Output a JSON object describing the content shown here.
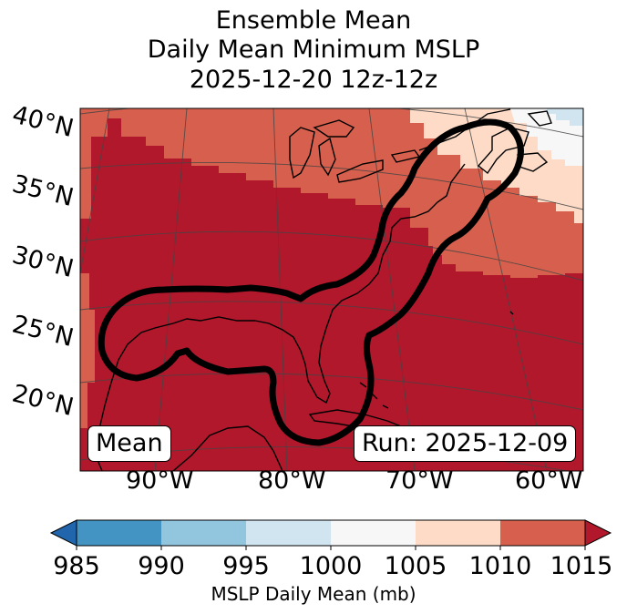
{
  "title": {
    "line1": "Ensemble Mean",
    "line2": "Daily Mean Minimum MSLP",
    "line3": "2025-12-20 12z-12z"
  },
  "map": {
    "lat_labels": [
      "40°N",
      "35°N",
      "30°N",
      "25°N",
      "20°N"
    ],
    "lon_labels": [
      "90°W",
      "80°W",
      "70°W",
      "60°W"
    ],
    "mean_label": "Mean",
    "run_label": "Run: 2025-12-09",
    "contour_color": "#000000",
    "fill_colors": {
      "lt_1015": "#b2182b",
      "1010_1015": "#d6604d",
      "1005_1010": "#fddbc7",
      "1000_1005": "#f7f7f7",
      "995_1000": "#d1e5f0"
    }
  },
  "colorbar": {
    "label": "MSLP Daily Mean (mb)",
    "ticks": [
      "985",
      "990",
      "995",
      "1000",
      "1005",
      "1010",
      "1015"
    ],
    "colors": [
      "#2166ac",
      "#4393c3",
      "#92c5de",
      "#d1e5f0",
      "#f7f7f7",
      "#fddbc7",
      "#d6604d",
      "#b2182b"
    ]
  }
}
